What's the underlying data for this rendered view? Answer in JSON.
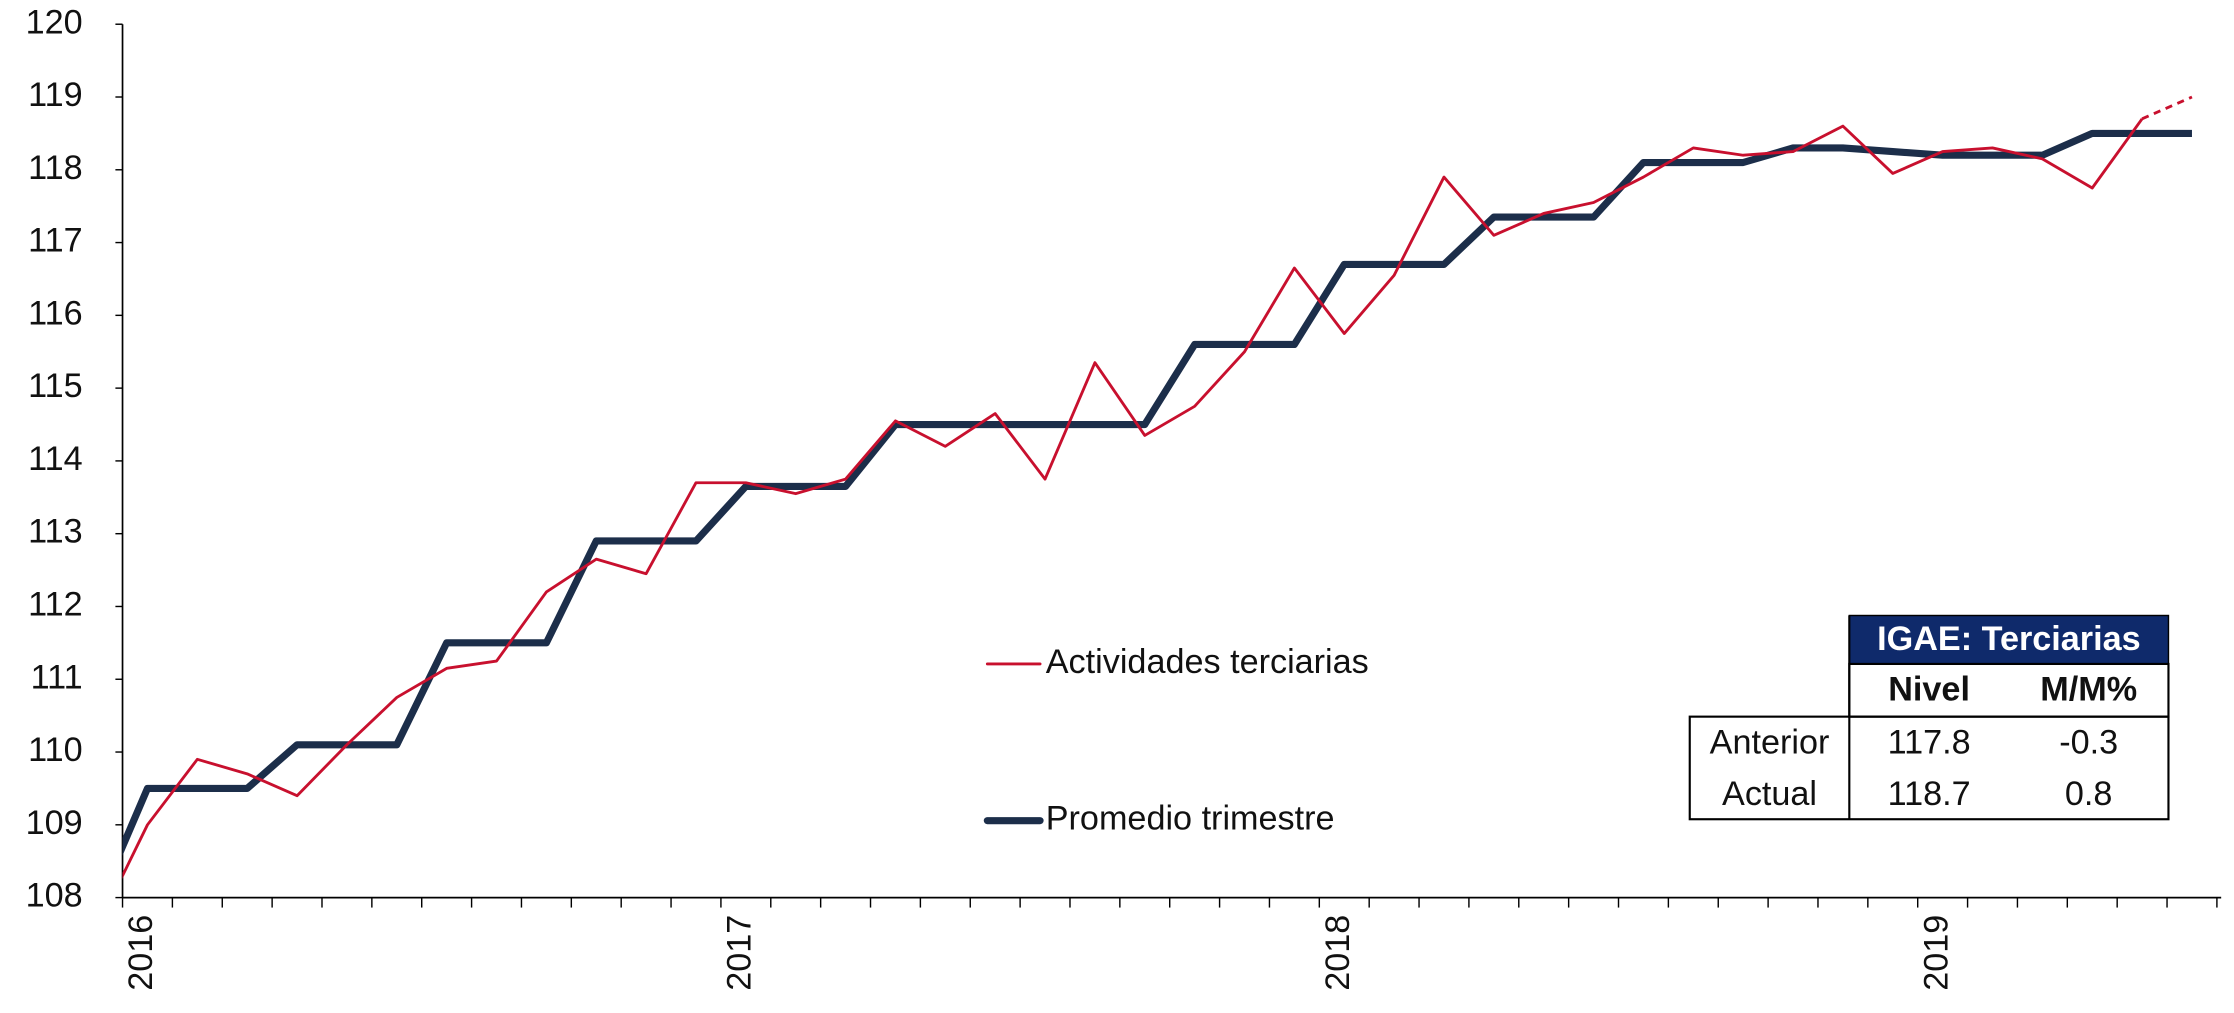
{
  "chart_data": {
    "type": "line",
    "categories": [
      null,
      "2016",
      null,
      null,
      null,
      null,
      null,
      null,
      null,
      null,
      null,
      null,
      null,
      "2017",
      null,
      null,
      null,
      null,
      null,
      null,
      null,
      null,
      null,
      null,
      null,
      "2018",
      null,
      null,
      null,
      null,
      null,
      null,
      null,
      null,
      null,
      null,
      null,
      "2019",
      null,
      null,
      null,
      null,
      null
    ],
    "series": [
      {
        "name": "Actividades terciarias",
        "color": "#c8102e",
        "dash_last_segment": true,
        "values": [
          107.6,
          109.0,
          109.9,
          109.7,
          109.4,
          110.1,
          110.75,
          111.15,
          111.25,
          112.2,
          112.65,
          112.45,
          113.7,
          113.7,
          113.55,
          113.75,
          114.55,
          114.2,
          114.65,
          113.75,
          115.35,
          114.35,
          114.75,
          115.5,
          116.65,
          115.75,
          116.55,
          117.9,
          117.1,
          117.4,
          117.55,
          117.9,
          118.3,
          118.2,
          118.25,
          118.6,
          117.95,
          118.25,
          118.3,
          118.15,
          117.75,
          118.7,
          119.0
        ]
      },
      {
        "name": "Promedio trimestre",
        "color": "#1c2e4a",
        "values": [
          107.9,
          109.5,
          109.5,
          109.5,
          110.1,
          110.1,
          110.1,
          111.5,
          111.5,
          111.5,
          112.9,
          112.9,
          112.9,
          113.65,
          113.65,
          113.65,
          114.5,
          114.5,
          114.5,
          114.5,
          114.5,
          114.5,
          115.6,
          115.6,
          115.6,
          116.7,
          116.7,
          116.7,
          117.35,
          117.35,
          117.35,
          118.1,
          118.1,
          118.1,
          118.3,
          118.3,
          118.25,
          118.2,
          118.2,
          118.2,
          118.5,
          118.5,
          118.5
        ]
      }
    ],
    "ylim": [
      108,
      120
    ],
    "yticks": [
      108,
      109,
      110,
      111,
      112,
      113,
      114,
      115,
      116,
      117,
      118,
      119,
      120
    ],
    "grid": false,
    "table": {
      "title": "IGAE: Terciarias",
      "columns": [
        "Nivel",
        "M/M%"
      ],
      "rows": [
        [
          "Anterior",
          117.8,
          -0.3
        ],
        [
          "Actual",
          118.7,
          0.8
        ]
      ]
    }
  }
}
